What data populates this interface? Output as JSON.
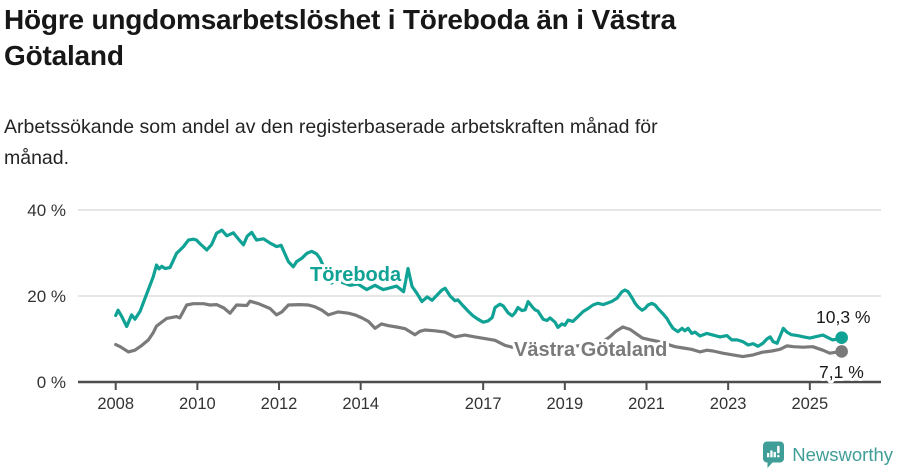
{
  "header": {
    "title_lines": [
      "Högre ungdomsarbetslöshet i Töreboda än i Västra",
      "Götaland"
    ],
    "subtitle_lines": [
      "Arbetssökande som andel av den registerbaserade arbetskraften månad för",
      "månad."
    ]
  },
  "colors": {
    "accent_teal": "#10a294",
    "series_gray": "#7a7a7a",
    "axis": "#4d4d4d",
    "tick_label": "#333333",
    "gridline": "#dddddd",
    "value_label": "#1a1a1a",
    "brand_teal": "#3f9e97"
  },
  "footer": {
    "brand": "Newsworthy"
  },
  "chart_data": {
    "type": "line",
    "title": "Högre ungdomsarbetslöshet i Töreboda än i Västra Götaland",
    "subtitle": "Arbetssökande som andel av den registerbaserade arbetskraften månad för månad.",
    "unit": "%",
    "grid": "horizontal-only",
    "legend_position": "inline-labels",
    "x_axis": {
      "ticks": [
        "2008",
        "2010",
        "2012",
        "2014",
        "2017",
        "2019",
        "2021",
        "2023",
        "2025"
      ],
      "range": [
        2007.9,
        2025.95
      ]
    },
    "y_axis": {
      "ticks": [
        {
          "value": 0,
          "label": "0 %"
        },
        {
          "value": 20,
          "label": "20 %"
        },
        {
          "value": 40,
          "label": "40 %"
        }
      ],
      "gridlines": [
        20,
        40
      ],
      "range": [
        0,
        44
      ]
    },
    "series": [
      {
        "name": "Töreboda",
        "color": "#10a294",
        "end_value": 10.3,
        "end_label": "10,3 %",
        "points": [
          [
            2008.0,
            15.5
          ],
          [
            2008.06,
            16.7
          ],
          [
            2008.15,
            15.2
          ],
          [
            2008.27,
            12.9
          ],
          [
            2008.39,
            15.6
          ],
          [
            2008.47,
            14.6
          ],
          [
            2008.6,
            16.5
          ],
          [
            2008.72,
            19.5
          ],
          [
            2008.84,
            22.5
          ],
          [
            2008.92,
            24.5
          ],
          [
            2009.0,
            27.2
          ],
          [
            2009.06,
            26.3
          ],
          [
            2009.13,
            26.9
          ],
          [
            2009.21,
            26.4
          ],
          [
            2009.33,
            26.6
          ],
          [
            2009.49,
            29.9
          ],
          [
            2009.66,
            31.5
          ],
          [
            2009.78,
            33.0
          ],
          [
            2009.9,
            33.2
          ],
          [
            2009.98,
            33.0
          ],
          [
            2010.06,
            32.2
          ],
          [
            2010.23,
            30.7
          ],
          [
            2010.35,
            32.0
          ],
          [
            2010.47,
            34.6
          ],
          [
            2010.6,
            35.3
          ],
          [
            2010.72,
            34.0
          ],
          [
            2010.88,
            34.7
          ],
          [
            2011.0,
            33.3
          ],
          [
            2011.13,
            31.9
          ],
          [
            2011.22,
            33.9
          ],
          [
            2011.33,
            34.8
          ],
          [
            2011.45,
            33.0
          ],
          [
            2011.62,
            33.3
          ],
          [
            2011.78,
            32.3
          ],
          [
            2011.94,
            31.5
          ],
          [
            2012.05,
            31.8
          ],
          [
            2012.23,
            28.0
          ],
          [
            2012.35,
            26.8
          ],
          [
            2012.43,
            28.0
          ],
          [
            2012.56,
            28.8
          ],
          [
            2012.68,
            29.9
          ],
          [
            2012.8,
            30.4
          ],
          [
            2012.92,
            29.8
          ],
          [
            2013.0,
            28.8
          ],
          [
            2013.13,
            26.0
          ],
          [
            2013.29,
            23.0
          ],
          [
            2013.41,
            24.0
          ],
          [
            2013.54,
            23.2
          ],
          [
            2013.74,
            22.5
          ],
          [
            2013.93,
            22.8
          ],
          [
            2014.15,
            21.5
          ],
          [
            2014.35,
            22.5
          ],
          [
            2014.55,
            21.5
          ],
          [
            2014.68,
            21.8
          ],
          [
            2014.88,
            22.3
          ],
          [
            2015.05,
            21.0
          ],
          [
            2015.16,
            26.4
          ],
          [
            2015.26,
            22.2
          ],
          [
            2015.38,
            20.6
          ],
          [
            2015.5,
            18.7
          ],
          [
            2015.63,
            19.8
          ],
          [
            2015.75,
            19.0
          ],
          [
            2015.87,
            20.2
          ],
          [
            2015.99,
            21.4
          ],
          [
            2016.07,
            21.8
          ],
          [
            2016.19,
            20.0
          ],
          [
            2016.31,
            18.9
          ],
          [
            2016.38,
            19.1
          ],
          [
            2016.51,
            17.7
          ],
          [
            2016.63,
            16.5
          ],
          [
            2016.75,
            15.4
          ],
          [
            2016.87,
            14.6
          ],
          [
            2017.0,
            13.9
          ],
          [
            2017.12,
            14.2
          ],
          [
            2017.22,
            15.0
          ],
          [
            2017.29,
            17.3
          ],
          [
            2017.41,
            18.1
          ],
          [
            2017.49,
            17.7
          ],
          [
            2017.61,
            16.1
          ],
          [
            2017.71,
            15.4
          ],
          [
            2017.78,
            16.1
          ],
          [
            2017.85,
            17.3
          ],
          [
            2017.95,
            16.6
          ],
          [
            2018.03,
            16.8
          ],
          [
            2018.1,
            18.7
          ],
          [
            2018.2,
            17.5
          ],
          [
            2018.27,
            16.8
          ],
          [
            2018.34,
            16.5
          ],
          [
            2018.47,
            14.6
          ],
          [
            2018.56,
            14.3
          ],
          [
            2018.64,
            14.9
          ],
          [
            2018.76,
            13.9
          ],
          [
            2018.83,
            12.7
          ],
          [
            2018.93,
            13.5
          ],
          [
            2019.0,
            13.2
          ],
          [
            2019.08,
            14.4
          ],
          [
            2019.2,
            14.1
          ],
          [
            2019.32,
            15.2
          ],
          [
            2019.45,
            16.4
          ],
          [
            2019.57,
            17.1
          ],
          [
            2019.69,
            17.9
          ],
          [
            2019.81,
            18.3
          ],
          [
            2019.94,
            18.0
          ],
          [
            2020.03,
            18.3
          ],
          [
            2020.16,
            18.8
          ],
          [
            2020.28,
            19.5
          ],
          [
            2020.4,
            21.0
          ],
          [
            2020.47,
            21.4
          ],
          [
            2020.55,
            21.0
          ],
          [
            2020.65,
            19.5
          ],
          [
            2020.72,
            18.3
          ],
          [
            2020.79,
            17.5
          ],
          [
            2020.89,
            16.7
          ],
          [
            2020.96,
            17.1
          ],
          [
            2021.04,
            17.9
          ],
          [
            2021.13,
            18.3
          ],
          [
            2021.21,
            17.9
          ],
          [
            2021.28,
            17.1
          ],
          [
            2021.4,
            15.9
          ],
          [
            2021.5,
            14.8
          ],
          [
            2021.57,
            13.6
          ],
          [
            2021.65,
            12.5
          ],
          [
            2021.77,
            11.7
          ],
          [
            2021.87,
            12.5
          ],
          [
            2021.94,
            11.9
          ],
          [
            2022.02,
            12.5
          ],
          [
            2022.11,
            11.3
          ],
          [
            2022.19,
            11.6
          ],
          [
            2022.31,
            10.7
          ],
          [
            2022.48,
            11.3
          ],
          [
            2022.63,
            10.9
          ],
          [
            2022.8,
            10.5
          ],
          [
            2022.97,
            10.8
          ],
          [
            2023.09,
            9.8
          ],
          [
            2023.22,
            9.8
          ],
          [
            2023.36,
            9.4
          ],
          [
            2023.49,
            8.6
          ],
          [
            2023.61,
            8.9
          ],
          [
            2023.73,
            8.3
          ],
          [
            2023.85,
            9.0
          ],
          [
            2023.95,
            10.0
          ],
          [
            2024.03,
            10.5
          ],
          [
            2024.1,
            9.4
          ],
          [
            2024.2,
            9.0
          ],
          [
            2024.35,
            12.5
          ],
          [
            2024.44,
            11.6
          ],
          [
            2024.55,
            11.0
          ],
          [
            2024.7,
            10.8
          ],
          [
            2024.85,
            10.5
          ],
          [
            2025.0,
            10.2
          ],
          [
            2025.17,
            10.6
          ],
          [
            2025.32,
            10.9
          ],
          [
            2025.49,
            10.1
          ],
          [
            2025.56,
            9.8
          ],
          [
            2025.68,
            10.0
          ],
          [
            2025.78,
            10.3
          ]
        ]
      },
      {
        "name": "Västra Götaland",
        "color": "#7a7a7a",
        "end_value": 7.1,
        "end_label": "7,1 %",
        "points": [
          [
            2008.0,
            8.7
          ],
          [
            2008.11,
            8.2
          ],
          [
            2008.31,
            7.0
          ],
          [
            2008.47,
            7.4
          ],
          [
            2008.64,
            8.5
          ],
          [
            2008.8,
            9.8
          ],
          [
            2008.92,
            11.5
          ],
          [
            2009.0,
            13.0
          ],
          [
            2009.25,
            14.8
          ],
          [
            2009.49,
            15.2
          ],
          [
            2009.57,
            14.9
          ],
          [
            2009.74,
            17.9
          ],
          [
            2009.9,
            18.2
          ],
          [
            2010.15,
            18.2
          ],
          [
            2010.31,
            17.9
          ],
          [
            2010.47,
            18.0
          ],
          [
            2010.65,
            17.2
          ],
          [
            2010.8,
            16.0
          ],
          [
            2010.96,
            17.9
          ],
          [
            2011.21,
            17.8
          ],
          [
            2011.29,
            18.8
          ],
          [
            2011.5,
            18.2
          ],
          [
            2011.78,
            17.1
          ],
          [
            2011.94,
            15.6
          ],
          [
            2012.07,
            16.3
          ],
          [
            2012.23,
            17.9
          ],
          [
            2012.5,
            18.0
          ],
          [
            2012.72,
            17.9
          ],
          [
            2012.88,
            17.5
          ],
          [
            2013.05,
            16.7
          ],
          [
            2013.21,
            15.6
          ],
          [
            2013.45,
            16.3
          ],
          [
            2013.7,
            16.0
          ],
          [
            2013.86,
            15.6
          ],
          [
            2014.03,
            14.9
          ],
          [
            2014.19,
            14.1
          ],
          [
            2014.35,
            12.5
          ],
          [
            2014.51,
            13.5
          ],
          [
            2014.68,
            13.1
          ],
          [
            2014.88,
            12.8
          ],
          [
            2015.09,
            12.4
          ],
          [
            2015.33,
            11.0
          ],
          [
            2015.45,
            11.8
          ],
          [
            2015.57,
            12.1
          ],
          [
            2015.82,
            11.9
          ],
          [
            2016.06,
            11.6
          ],
          [
            2016.31,
            10.5
          ],
          [
            2016.55,
            10.9
          ],
          [
            2016.8,
            10.5
          ],
          [
            2017.04,
            10.1
          ],
          [
            2017.29,
            9.7
          ],
          [
            2017.54,
            8.5
          ],
          [
            2017.71,
            8.1
          ],
          [
            2017.85,
            8.5
          ],
          [
            2018.2,
            8.3
          ],
          [
            2018.5,
            8.6
          ],
          [
            2018.8,
            8.2
          ],
          [
            2019.0,
            8.0
          ],
          [
            2019.3,
            8.4
          ],
          [
            2019.6,
            8.8
          ],
          [
            2019.9,
            9.2
          ],
          [
            2020.1,
            10.5
          ],
          [
            2020.25,
            11.8
          ],
          [
            2020.42,
            12.8
          ],
          [
            2020.6,
            12.2
          ],
          [
            2020.75,
            11.2
          ],
          [
            2020.9,
            10.2
          ],
          [
            2021.1,
            9.8
          ],
          [
            2021.3,
            9.4
          ],
          [
            2021.5,
            8.8
          ],
          [
            2021.7,
            8.2
          ],
          [
            2021.9,
            7.9
          ],
          [
            2022.1,
            7.6
          ],
          [
            2022.31,
            7.0
          ],
          [
            2022.48,
            7.4
          ],
          [
            2022.63,
            7.2
          ],
          [
            2022.87,
            6.7
          ],
          [
            2023.12,
            6.3
          ],
          [
            2023.36,
            5.9
          ],
          [
            2023.61,
            6.3
          ],
          [
            2023.83,
            6.9
          ],
          [
            2024.07,
            7.2
          ],
          [
            2024.27,
            7.6
          ],
          [
            2024.44,
            8.4
          ],
          [
            2024.6,
            8.2
          ],
          [
            2024.83,
            8.1
          ],
          [
            2025.07,
            8.2
          ],
          [
            2025.32,
            7.4
          ],
          [
            2025.49,
            6.7
          ],
          [
            2025.63,
            6.9
          ],
          [
            2025.78,
            7.1
          ]
        ]
      }
    ]
  }
}
